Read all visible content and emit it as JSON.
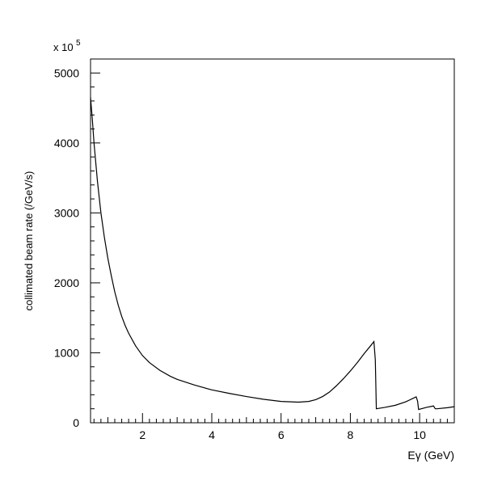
{
  "chart_data": {
    "type": "line",
    "title": "",
    "xlabel": "Eγ (GeV)",
    "ylabel": "collimated beam rate (/GeV/s)",
    "y_multiplier_label": "x 10",
    "y_multiplier_exponent": "5",
    "xlim": [
      0.5,
      11.0
    ],
    "ylim": [
      0,
      5200
    ],
    "x_ticks": [
      2,
      4,
      6,
      8,
      10
    ],
    "y_ticks": [
      0,
      1000,
      2000,
      3000,
      4000,
      5000
    ],
    "grid": false,
    "legend": "none",
    "line_color": "#000000",
    "series": [
      {
        "x": [
          0.5,
          0.55,
          0.6,
          0.7,
          0.8,
          0.9,
          1.0,
          1.1,
          1.2,
          1.3,
          1.4,
          1.5,
          1.6,
          1.8,
          2.0,
          2.2,
          2.5,
          2.8,
          3.0,
          3.5,
          4.0,
          4.5,
          5.0,
          5.5,
          6.0,
          6.5,
          6.8,
          7.0,
          7.2,
          7.4,
          7.6,
          7.8,
          8.0,
          8.2,
          8.4,
          8.6,
          8.68,
          8.72,
          8.75,
          9.0,
          9.3,
          9.6,
          9.9,
          9.94,
          9.97,
          10.2,
          10.4,
          10.45,
          10.5,
          10.8,
          11.0
        ],
        "y": [
          4650,
          4350,
          4000,
          3450,
          3000,
          2650,
          2350,
          2100,
          1870,
          1680,
          1520,
          1390,
          1280,
          1100,
          960,
          860,
          750,
          665,
          620,
          540,
          470,
          420,
          375,
          335,
          305,
          295,
          305,
          330,
          375,
          440,
          530,
          630,
          740,
          860,
          990,
          1110,
          1160,
          900,
          200,
          220,
          250,
          300,
          370,
          310,
          190,
          220,
          240,
          200,
          200,
          215,
          230
        ]
      }
    ]
  }
}
